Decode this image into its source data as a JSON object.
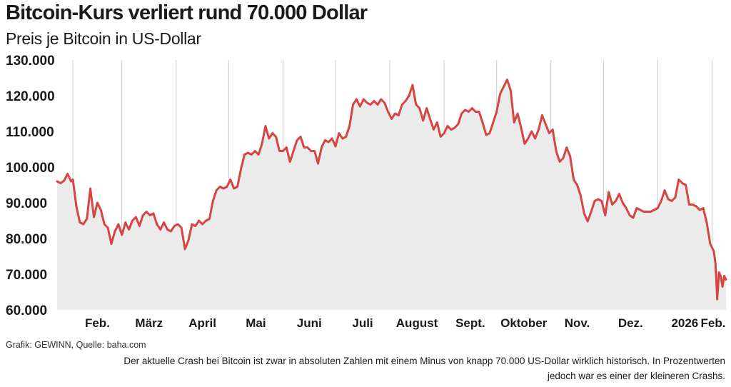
{
  "header": {
    "title": "Bitcoin-Kurs verliert rund 70.000 Dollar",
    "subtitle": "Preis je Bitcoin in US-Dollar"
  },
  "footer": {
    "source": "Grafik: GEWINN, Quelle: baha.com",
    "caption_line1": "Der aktuelle Crash bei Bitcoin ist zwar in absoluten Zahlen mit einem Minus von knapp 70.000 US-Dollar wirklich historisch. In Prozentwerten",
    "caption_line2": "jedoch war es einer der kleineren Crashs."
  },
  "colors": {
    "line": "#d64541",
    "area": "#ebebeb",
    "grid": "#cccccc",
    "text": "#1a1a1a"
  },
  "chart_data": {
    "type": "line",
    "title": "Bitcoin-Kurs verliert rund 70.000 Dollar",
    "subtitle": "Preis je Bitcoin in US-Dollar",
    "xlabel": "",
    "ylabel": "",
    "ylim": [
      60000,
      130000
    ],
    "yticks": [
      {
        "value": 60000,
        "label": "60.000"
      },
      {
        "value": 70000,
        "label": "70.000"
      },
      {
        "value": 80000,
        "label": "80.000"
      },
      {
        "value": 90000,
        "label": "90.000"
      },
      {
        "value": 100000,
        "label": "100.000"
      },
      {
        "value": 110000,
        "label": "110.000"
      },
      {
        "value": 120000,
        "label": "120.000"
      },
      {
        "value": 130000,
        "label": "130.000"
      }
    ],
    "xlim": [
      "2025-01-23",
      "2026-02-09"
    ],
    "xticks": [
      {
        "date": "2025-02-01",
        "label": "Feb."
      },
      {
        "date": "2025-03-01",
        "label": "März"
      },
      {
        "date": "2025-04-01",
        "label": "April"
      },
      {
        "date": "2025-05-01",
        "label": "Mai"
      },
      {
        "date": "2025-06-01",
        "label": "Juni"
      },
      {
        "date": "2025-07-01",
        "label": "Juli"
      },
      {
        "date": "2025-08-01",
        "label": "August"
      },
      {
        "date": "2025-09-01",
        "label": "Sept."
      },
      {
        "date": "2025-10-01",
        "label": "Oktober"
      },
      {
        "date": "2025-11-01",
        "label": "Nov."
      },
      {
        "date": "2025-12-01",
        "label": "Dez."
      },
      {
        "date": "2026-01-01",
        "label": "2026"
      },
      {
        "date": "2026-02-01",
        "label": "Feb."
      }
    ],
    "grid": "vertical lines at month starts",
    "area_fill": true,
    "series": [
      {
        "values": [
          {
            "x": "2025-01-23",
            "y": 96000
          },
          {
            "x": "2025-01-25",
            "y": 95500
          },
          {
            "x": "2025-01-27",
            "y": 96200
          },
          {
            "x": "2025-01-29",
            "y": 98100
          },
          {
            "x": "2025-01-31",
            "y": 96000
          },
          {
            "x": "2025-02-01",
            "y": 96500
          },
          {
            "x": "2025-02-03",
            "y": 89000
          },
          {
            "x": "2025-02-05",
            "y": 84500
          },
          {
            "x": "2025-02-07",
            "y": 84000
          },
          {
            "x": "2025-02-09",
            "y": 85500
          },
          {
            "x": "2025-02-11",
            "y": 94000
          },
          {
            "x": "2025-02-13",
            "y": 86000
          },
          {
            "x": "2025-02-15",
            "y": 90000
          },
          {
            "x": "2025-02-17",
            "y": 88000
          },
          {
            "x": "2025-02-19",
            "y": 84000
          },
          {
            "x": "2025-02-21",
            "y": 83000
          },
          {
            "x": "2025-02-23",
            "y": 78500
          },
          {
            "x": "2025-02-25",
            "y": 82000
          },
          {
            "x": "2025-02-27",
            "y": 84000
          },
          {
            "x": "2025-03-01",
            "y": 81000
          },
          {
            "x": "2025-03-03",
            "y": 84500
          },
          {
            "x": "2025-03-05",
            "y": 82500
          },
          {
            "x": "2025-03-07",
            "y": 85000
          },
          {
            "x": "2025-03-09",
            "y": 86000
          },
          {
            "x": "2025-03-11",
            "y": 83500
          },
          {
            "x": "2025-03-13",
            "y": 86500
          },
          {
            "x": "2025-03-15",
            "y": 87500
          },
          {
            "x": "2025-03-17",
            "y": 86500
          },
          {
            "x": "2025-03-19",
            "y": 87000
          },
          {
            "x": "2025-03-21",
            "y": 84000
          },
          {
            "x": "2025-03-23",
            "y": 82500
          },
          {
            "x": "2025-03-25",
            "y": 84500
          },
          {
            "x": "2025-03-27",
            "y": 82500
          },
          {
            "x": "2025-03-29",
            "y": 82000
          },
          {
            "x": "2025-03-31",
            "y": 83500
          },
          {
            "x": "2025-04-02",
            "y": 84000
          },
          {
            "x": "2025-04-04",
            "y": 83000
          },
          {
            "x": "2025-04-06",
            "y": 77000
          },
          {
            "x": "2025-04-08",
            "y": 79500
          },
          {
            "x": "2025-04-10",
            "y": 84000
          },
          {
            "x": "2025-04-12",
            "y": 83500
          },
          {
            "x": "2025-04-14",
            "y": 85000
          },
          {
            "x": "2025-04-16",
            "y": 84000
          },
          {
            "x": "2025-04-18",
            "y": 85000
          },
          {
            "x": "2025-04-20",
            "y": 85500
          },
          {
            "x": "2025-04-22",
            "y": 90500
          },
          {
            "x": "2025-04-24",
            "y": 93500
          },
          {
            "x": "2025-04-26",
            "y": 94500
          },
          {
            "x": "2025-04-28",
            "y": 94000
          },
          {
            "x": "2025-04-30",
            "y": 94500
          },
          {
            "x": "2025-05-02",
            "y": 96500
          },
          {
            "x": "2025-05-04",
            "y": 94000
          },
          {
            "x": "2025-05-06",
            "y": 94500
          },
          {
            "x": "2025-05-08",
            "y": 99500
          },
          {
            "x": "2025-05-10",
            "y": 103500
          },
          {
            "x": "2025-05-12",
            "y": 104000
          },
          {
            "x": "2025-05-14",
            "y": 103500
          },
          {
            "x": "2025-05-16",
            "y": 104500
          },
          {
            "x": "2025-05-18",
            "y": 103500
          },
          {
            "x": "2025-05-20",
            "y": 106500
          },
          {
            "x": "2025-05-22",
            "y": 111500
          },
          {
            "x": "2025-05-24",
            "y": 108000
          },
          {
            "x": "2025-05-26",
            "y": 109500
          },
          {
            "x": "2025-05-28",
            "y": 108500
          },
          {
            "x": "2025-05-30",
            "y": 104500
          },
          {
            "x": "2025-06-01",
            "y": 104500
          },
          {
            "x": "2025-06-03",
            "y": 105500
          },
          {
            "x": "2025-06-05",
            "y": 101500
          },
          {
            "x": "2025-06-07",
            "y": 104500
          },
          {
            "x": "2025-06-09",
            "y": 107500
          },
          {
            "x": "2025-06-11",
            "y": 108500
          },
          {
            "x": "2025-06-13",
            "y": 105500
          },
          {
            "x": "2025-06-15",
            "y": 105500
          },
          {
            "x": "2025-06-17",
            "y": 104500
          },
          {
            "x": "2025-06-19",
            "y": 104500
          },
          {
            "x": "2025-06-21",
            "y": 101000
          },
          {
            "x": "2025-06-23",
            "y": 105500
          },
          {
            "x": "2025-06-25",
            "y": 107500
          },
          {
            "x": "2025-06-27",
            "y": 107000
          },
          {
            "x": "2025-06-29",
            "y": 108000
          },
          {
            "x": "2025-07-01",
            "y": 105800
          },
          {
            "x": "2025-07-03",
            "y": 109500
          },
          {
            "x": "2025-07-05",
            "y": 108000
          },
          {
            "x": "2025-07-07",
            "y": 108500
          },
          {
            "x": "2025-07-09",
            "y": 111500
          },
          {
            "x": "2025-07-11",
            "y": 117500
          },
          {
            "x": "2025-07-13",
            "y": 119000
          },
          {
            "x": "2025-07-15",
            "y": 117000
          },
          {
            "x": "2025-07-17",
            "y": 119000
          },
          {
            "x": "2025-07-19",
            "y": 118000
          },
          {
            "x": "2025-07-21",
            "y": 117500
          },
          {
            "x": "2025-07-23",
            "y": 118500
          },
          {
            "x": "2025-07-25",
            "y": 117500
          },
          {
            "x": "2025-07-27",
            "y": 119000
          },
          {
            "x": "2025-07-29",
            "y": 118000
          },
          {
            "x": "2025-07-31",
            "y": 115500
          },
          {
            "x": "2025-08-02",
            "y": 113500
          },
          {
            "x": "2025-08-04",
            "y": 115000
          },
          {
            "x": "2025-08-06",
            "y": 114500
          },
          {
            "x": "2025-08-08",
            "y": 117500
          },
          {
            "x": "2025-08-10",
            "y": 118500
          },
          {
            "x": "2025-08-12",
            "y": 120000
          },
          {
            "x": "2025-08-14",
            "y": 123000
          },
          {
            "x": "2025-08-16",
            "y": 117500
          },
          {
            "x": "2025-08-18",
            "y": 116500
          },
          {
            "x": "2025-08-20",
            "y": 113000
          },
          {
            "x": "2025-08-22",
            "y": 116500
          },
          {
            "x": "2025-08-24",
            "y": 113500
          },
          {
            "x": "2025-08-26",
            "y": 110500
          },
          {
            "x": "2025-08-28",
            "y": 112500
          },
          {
            "x": "2025-08-30",
            "y": 108500
          },
          {
            "x": "2025-09-01",
            "y": 109500
          },
          {
            "x": "2025-09-03",
            "y": 111500
          },
          {
            "x": "2025-09-05",
            "y": 110500
          },
          {
            "x": "2025-09-07",
            "y": 111000
          },
          {
            "x": "2025-09-09",
            "y": 112000
          },
          {
            "x": "2025-09-11",
            "y": 115000
          },
          {
            "x": "2025-09-13",
            "y": 116000
          },
          {
            "x": "2025-09-15",
            "y": 115500
          },
          {
            "x": "2025-09-17",
            "y": 116500
          },
          {
            "x": "2025-09-19",
            "y": 115500
          },
          {
            "x": "2025-09-21",
            "y": 115500
          },
          {
            "x": "2025-09-23",
            "y": 112500
          },
          {
            "x": "2025-09-25",
            "y": 109000
          },
          {
            "x": "2025-09-27",
            "y": 109500
          },
          {
            "x": "2025-09-29",
            "y": 112500
          },
          {
            "x": "2025-10-01",
            "y": 115500
          },
          {
            "x": "2025-10-03",
            "y": 120500
          },
          {
            "x": "2025-10-05",
            "y": 122500
          },
          {
            "x": "2025-10-07",
            "y": 124500
          },
          {
            "x": "2025-10-09",
            "y": 121500
          },
          {
            "x": "2025-10-11",
            "y": 112500
          },
          {
            "x": "2025-10-13",
            "y": 115000
          },
          {
            "x": "2025-10-15",
            "y": 111000
          },
          {
            "x": "2025-10-17",
            "y": 106500
          },
          {
            "x": "2025-10-19",
            "y": 108000
          },
          {
            "x": "2025-10-21",
            "y": 110000
          },
          {
            "x": "2025-10-23",
            "y": 108000
          },
          {
            "x": "2025-10-25",
            "y": 110500
          },
          {
            "x": "2025-10-27",
            "y": 114500
          },
          {
            "x": "2025-10-29",
            "y": 112000
          },
          {
            "x": "2025-10-31",
            "y": 109500
          },
          {
            "x": "2025-11-02",
            "y": 110500
          },
          {
            "x": "2025-11-04",
            "y": 104500
          },
          {
            "x": "2025-11-06",
            "y": 101500
          },
          {
            "x": "2025-11-08",
            "y": 102500
          },
          {
            "x": "2025-11-10",
            "y": 105500
          },
          {
            "x": "2025-11-12",
            "y": 103000
          },
          {
            "x": "2025-11-14",
            "y": 96500
          },
          {
            "x": "2025-11-16",
            "y": 95000
          },
          {
            "x": "2025-11-18",
            "y": 92000
          },
          {
            "x": "2025-11-20",
            "y": 87000
          },
          {
            "x": "2025-11-22",
            "y": 84800
          },
          {
            "x": "2025-11-24",
            "y": 87500
          },
          {
            "x": "2025-11-26",
            "y": 90500
          },
          {
            "x": "2025-11-28",
            "y": 91000
          },
          {
            "x": "2025-11-30",
            "y": 90500
          },
          {
            "x": "2025-12-02",
            "y": 86500
          },
          {
            "x": "2025-12-04",
            "y": 93000
          },
          {
            "x": "2025-12-06",
            "y": 89500
          },
          {
            "x": "2025-12-08",
            "y": 90500
          },
          {
            "x": "2025-12-10",
            "y": 92500
          },
          {
            "x": "2025-12-12",
            "y": 90000
          },
          {
            "x": "2025-12-14",
            "y": 88500
          },
          {
            "x": "2025-12-16",
            "y": 86500
          },
          {
            "x": "2025-12-18",
            "y": 85800
          },
          {
            "x": "2025-12-20",
            "y": 88500
          },
          {
            "x": "2025-12-22",
            "y": 88000
          },
          {
            "x": "2025-12-24",
            "y": 87500
          },
          {
            "x": "2025-12-26",
            "y": 87500
          },
          {
            "x": "2025-12-28",
            "y": 87500
          },
          {
            "x": "2025-12-30",
            "y": 88000
          },
          {
            "x": "2026-01-01",
            "y": 88500
          },
          {
            "x": "2026-01-03",
            "y": 90500
          },
          {
            "x": "2026-01-05",
            "y": 93500
          },
          {
            "x": "2026-01-07",
            "y": 91000
          },
          {
            "x": "2026-01-09",
            "y": 90500
          },
          {
            "x": "2026-01-11",
            "y": 91500
          },
          {
            "x": "2026-01-13",
            "y": 96500
          },
          {
            "x": "2026-01-15",
            "y": 95500
          },
          {
            "x": "2026-01-17",
            "y": 95000
          },
          {
            "x": "2026-01-19",
            "y": 89500
          },
          {
            "x": "2026-01-21",
            "y": 89500
          },
          {
            "x": "2026-01-23",
            "y": 89000
          },
          {
            "x": "2026-01-25",
            "y": 88000
          },
          {
            "x": "2026-01-27",
            "y": 88500
          },
          {
            "x": "2026-01-29",
            "y": 84500
          },
          {
            "x": "2026-01-31",
            "y": 78500
          },
          {
            "x": "2026-02-02",
            "y": 76500
          },
          {
            "x": "2026-02-03",
            "y": 73000
          },
          {
            "x": "2026-02-04",
            "y": 63000
          },
          {
            "x": "2026-02-05",
            "y": 70500
          },
          {
            "x": "2026-02-06",
            "y": 69500
          },
          {
            "x": "2026-02-07",
            "y": 66500
          },
          {
            "x": "2026-02-08",
            "y": 69500
          },
          {
            "x": "2026-02-09",
            "y": 68500
          }
        ]
      }
    ]
  }
}
